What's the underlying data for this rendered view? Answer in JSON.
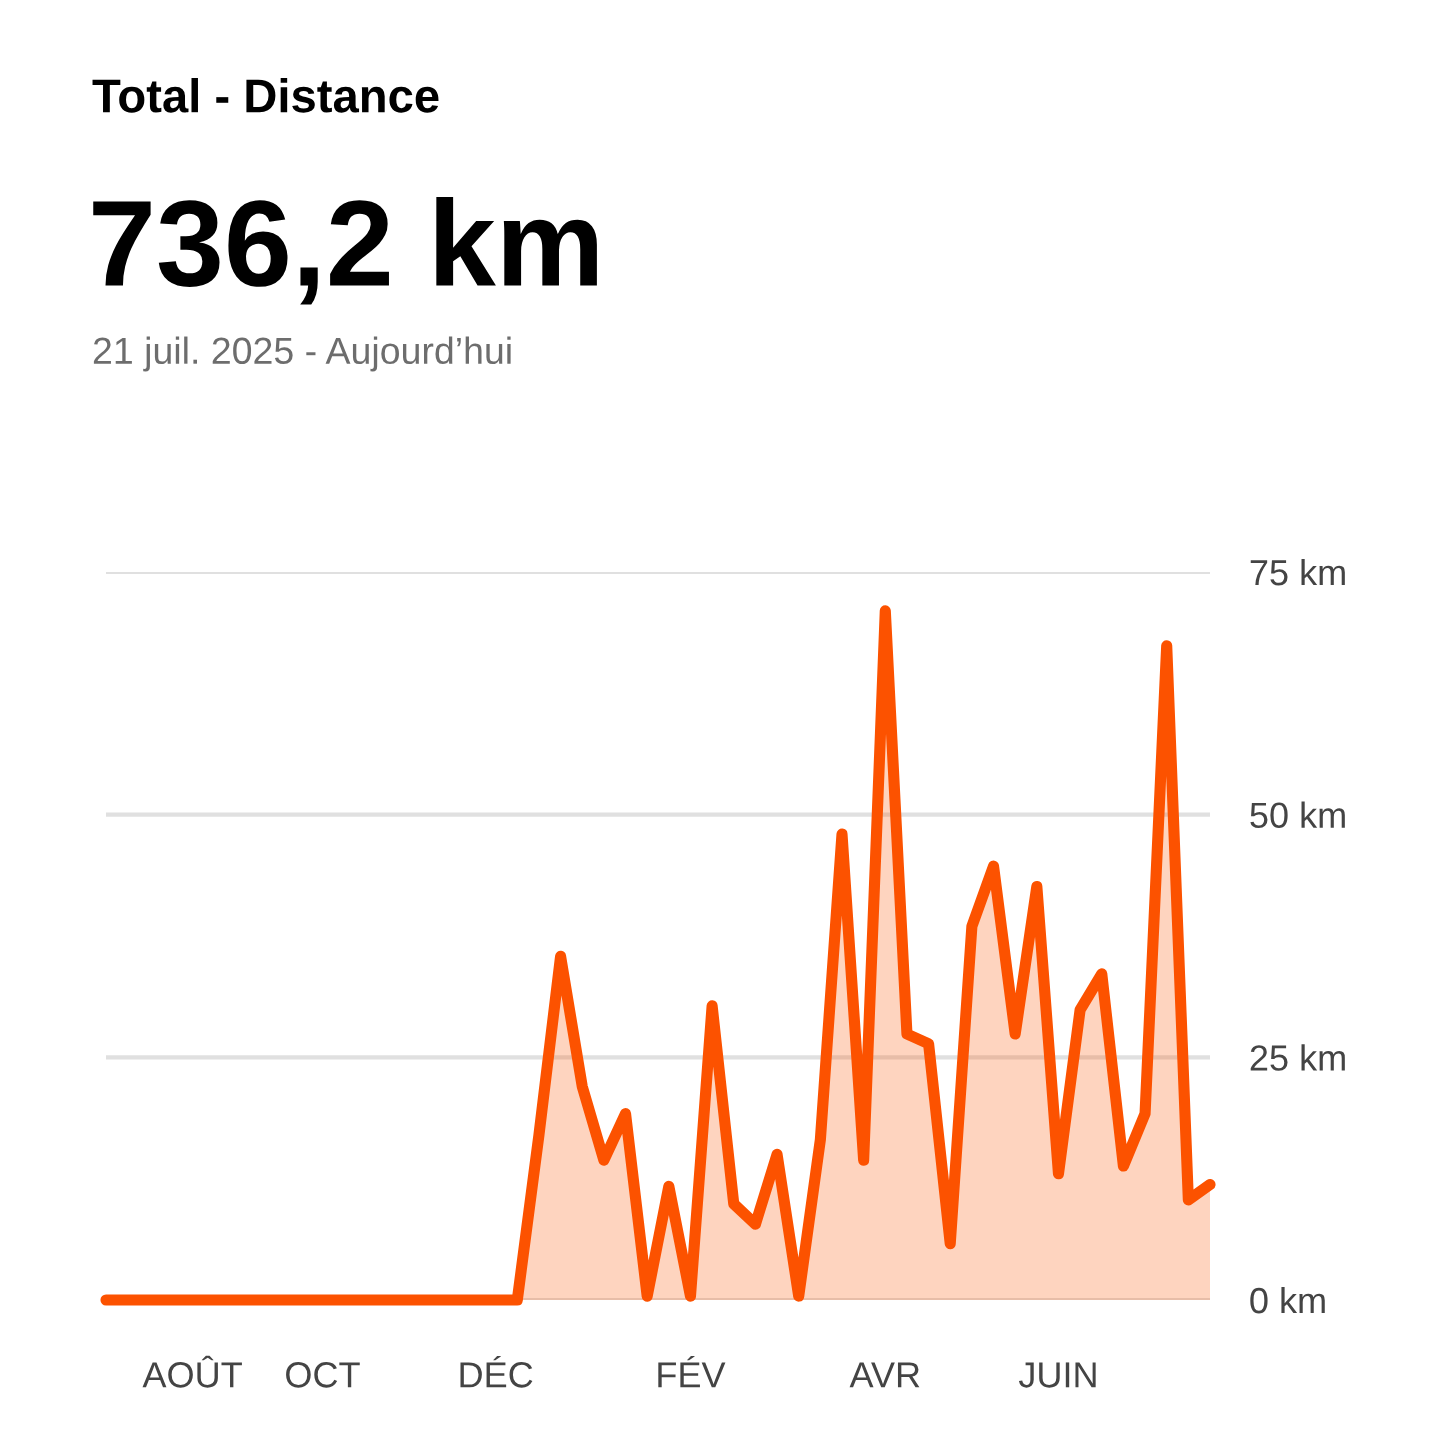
{
  "chart_data": {
    "type": "area",
    "title": "Total - Distance",
    "subtitle": "736,2 km",
    "annotations": [
      "21 juil. 2025 - Aujourd’hui"
    ],
    "categories": [
      null,
      null,
      null,
      null,
      "AOÛT",
      null,
      null,
      null,
      null,
      null,
      "OCT",
      null,
      null,
      null,
      null,
      null,
      null,
      null,
      "DÉC",
      null,
      null,
      null,
      null,
      null,
      null,
      null,
      null,
      "FÉV",
      null,
      null,
      null,
      null,
      null,
      null,
      null,
      null,
      "AVR",
      null,
      null,
      null,
      null,
      null,
      null,
      null,
      "JUIN",
      null,
      null,
      null,
      null,
      null,
      null,
      null
    ],
    "series": [
      {
        "color": "#fc5200",
        "values": [
          0,
          0,
          0,
          0,
          0,
          0,
          0,
          0,
          0,
          0,
          0,
          0,
          0,
          0,
          0,
          0,
          0,
          0,
          0,
          0,
          17,
          35.4,
          22,
          14.4,
          19.2,
          0.4,
          11.7,
          0.4,
          30.3,
          9.9,
          7.8,
          15,
          0.4,
          16.5,
          48,
          14.4,
          71,
          27.4,
          26.4,
          5.8,
          38.5,
          44.7,
          27.4,
          42.6,
          13,
          29.9,
          33.6,
          13.8,
          19.2,
          67.4,
          10.3,
          11.9
        ]
      }
    ],
    "ylim": [
      0,
      75
    ],
    "yticks": [
      {
        "value": 0,
        "label": "0 km"
      },
      {
        "value": 25,
        "label": "25 km"
      },
      {
        "value": 50,
        "label": "50 km"
      },
      {
        "value": 75,
        "label": "75 km"
      }
    ],
    "grid": "y",
    "legend": false,
    "line_style": "solid",
    "marker": "none"
  }
}
